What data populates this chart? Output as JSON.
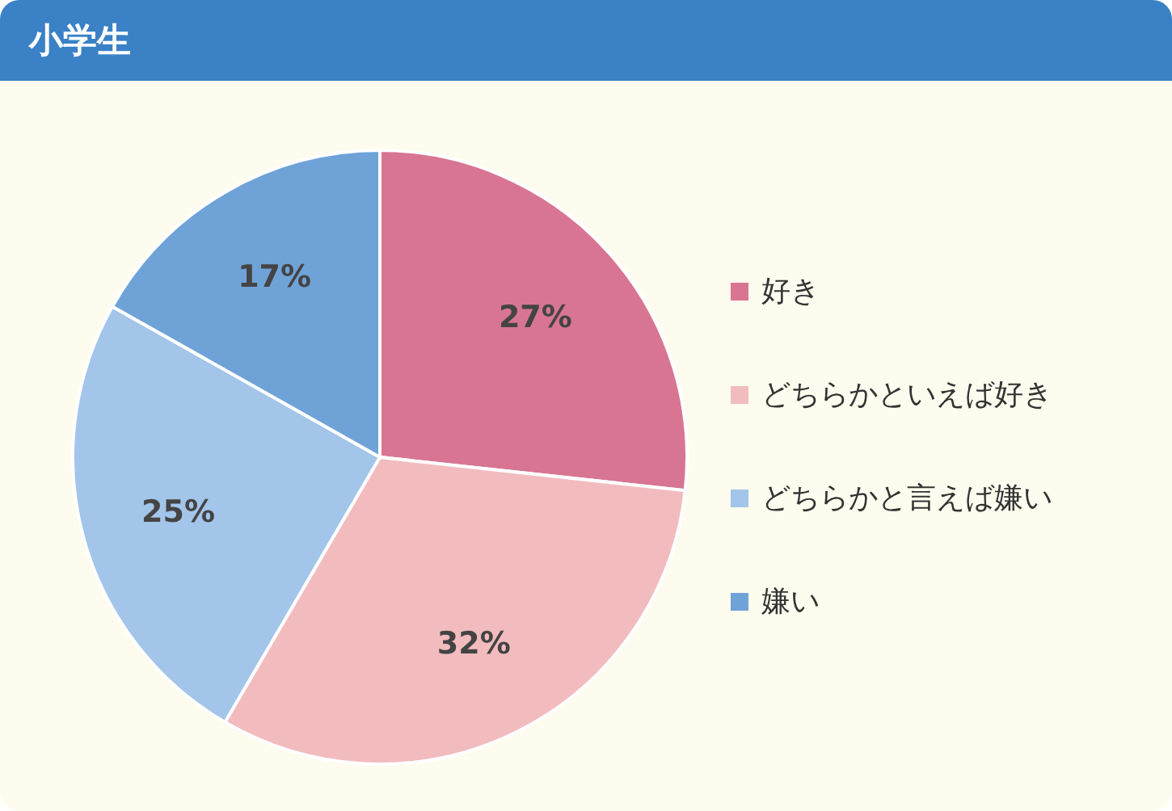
{
  "chart_data": {
    "type": "pie",
    "title": "小学生",
    "categories": [
      "好き",
      "どちらかといえば好き",
      "どちらかと言えば嫌い",
      "嫌い"
    ],
    "values": [
      27,
      32,
      25,
      17
    ],
    "colors": [
      "#d87592",
      "#f2bcbf",
      "#a3c5ea",
      "#6fa3d8"
    ],
    "value_labels": [
      "27%",
      "32%",
      "25%",
      "17%"
    ],
    "legend": "right"
  }
}
